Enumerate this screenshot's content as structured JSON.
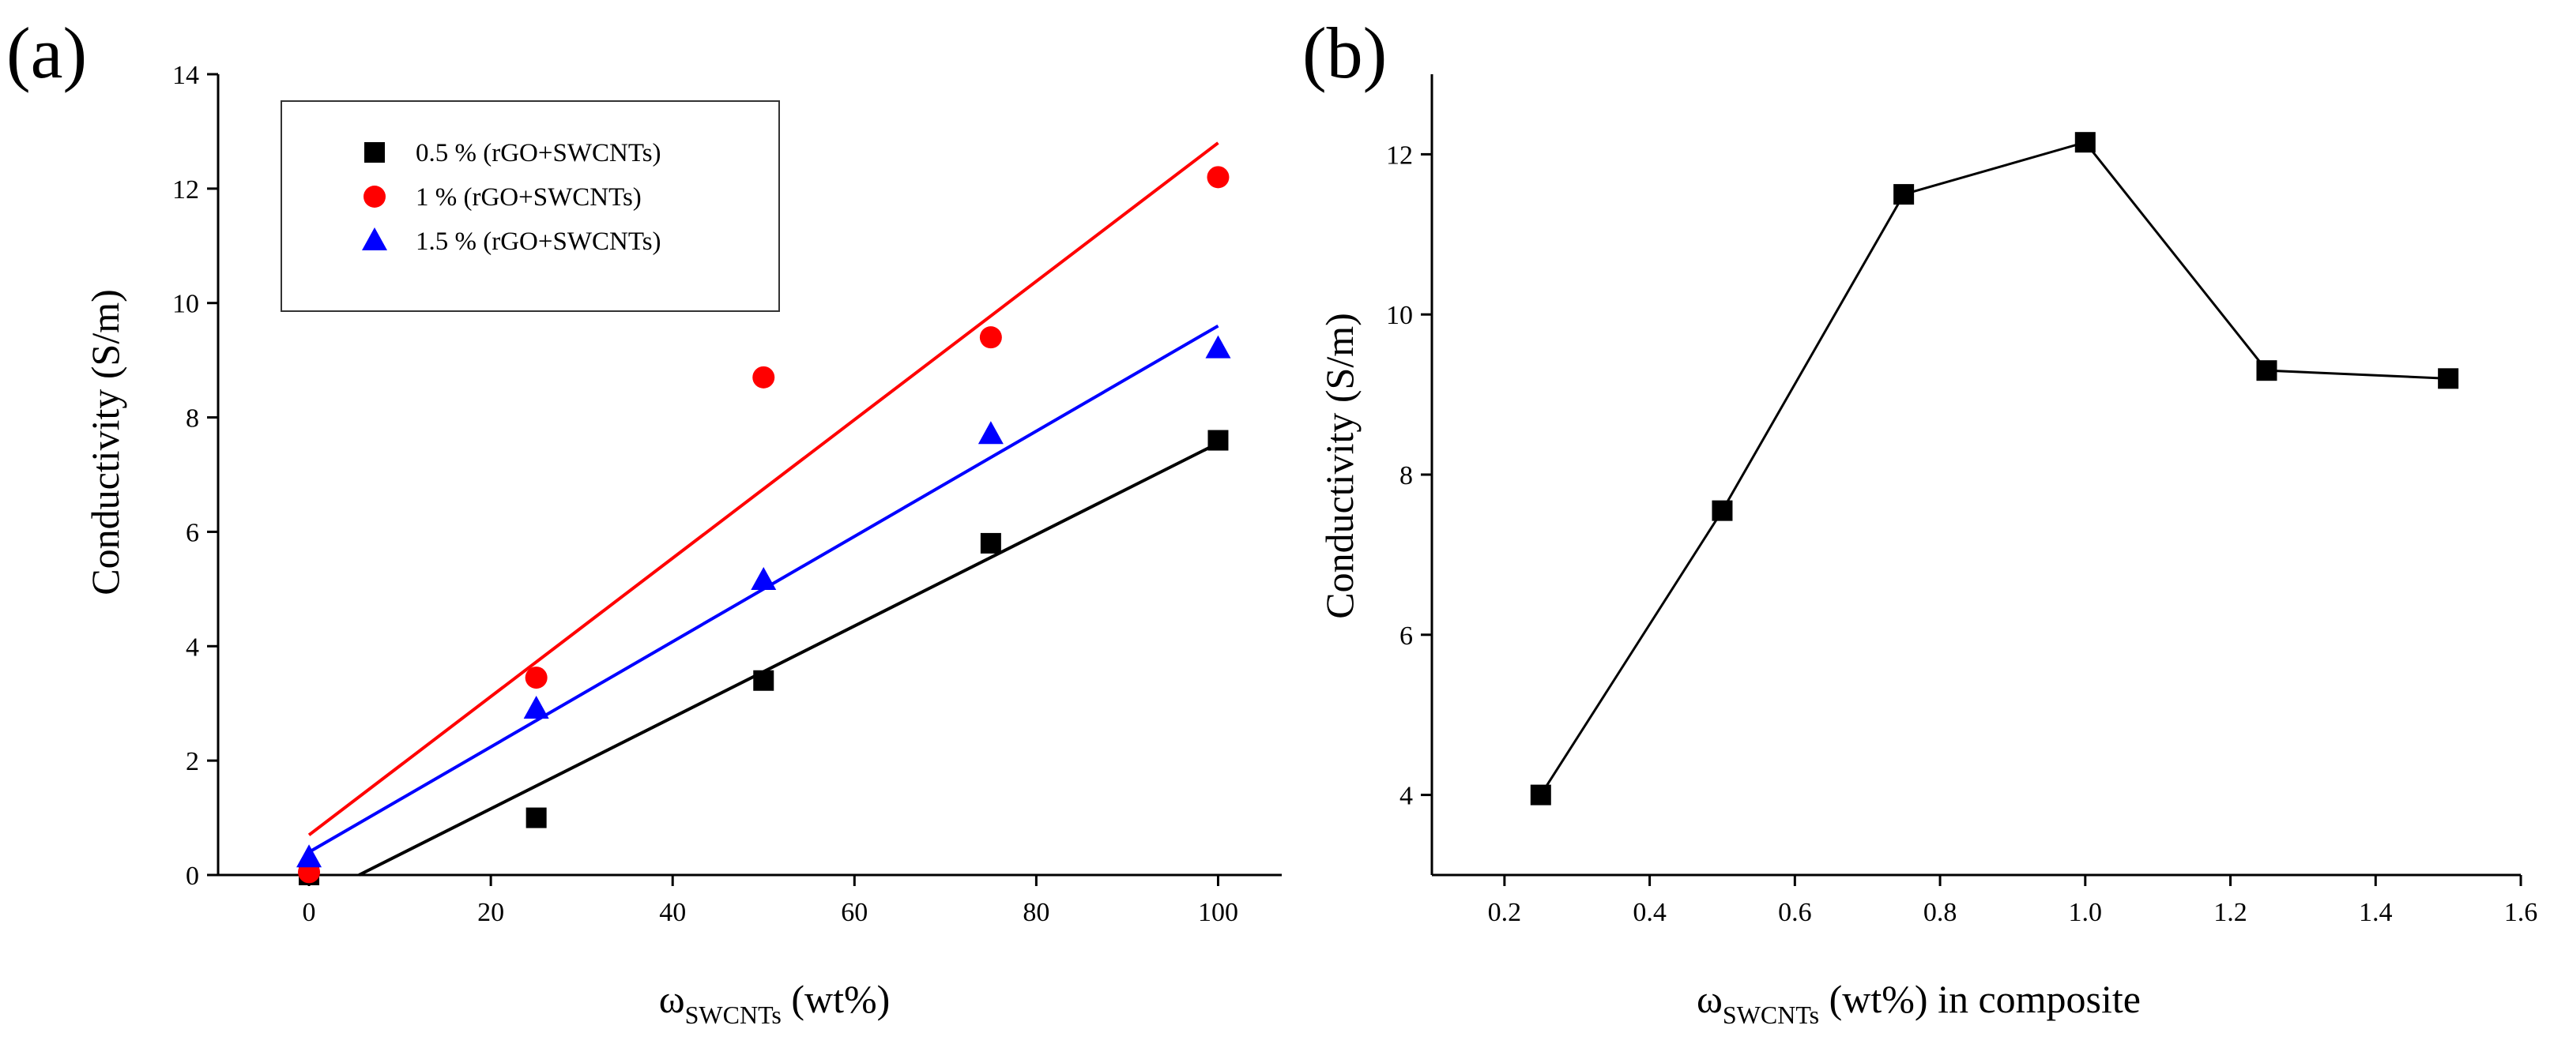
{
  "chart_data": [
    {
      "type": "scatter",
      "panel_label": "(a)",
      "xlabel": {
        "main": "ω",
        "sub": "SWCNTs",
        "rest": " (wt%)"
      },
      "ylabel": "Conductivity  (S/m)",
      "xlim": [
        -10,
        107
      ],
      "ylim": [
        0,
        14
      ],
      "xticks": [
        0,
        20,
        40,
        60,
        80,
        100
      ],
      "yticks": [
        0,
        2,
        4,
        6,
        8,
        10,
        12,
        14
      ],
      "grid": false,
      "legend_position": "top-left",
      "series": [
        {
          "name": "0.5 % (rGO+SWCNTs)",
          "marker": "square",
          "color": "#000000",
          "x": [
            0,
            25,
            50,
            75,
            100
          ],
          "y": [
            0.0,
            1.0,
            3.4,
            5.8,
            7.6
          ],
          "fit": {
            "x": [
              5.5,
              100
            ],
            "y": [
              0.0,
              7.55
            ]
          }
        },
        {
          "name": "1 % (rGO+SWCNTs)",
          "marker": "circle",
          "color": "#ff0000",
          "x": [
            0,
            25,
            50,
            75,
            100
          ],
          "y": [
            0.05,
            3.45,
            8.7,
            9.4,
            12.2
          ],
          "fit": {
            "x": [
              0,
              100
            ],
            "y": [
              0.7,
              12.8
            ]
          }
        },
        {
          "name": "1.5 % (rGO+SWCNTs)",
          "marker": "triangle",
          "color": "#0000ff",
          "x": [
            0,
            25,
            50,
            75,
            100
          ],
          "y": [
            0.3,
            2.9,
            5.15,
            7.7,
            9.2
          ],
          "fit": {
            "x": [
              0,
              100
            ],
            "y": [
              0.4,
              9.6
            ]
          }
        }
      ]
    },
    {
      "type": "line",
      "panel_label": "(b)",
      "xlabel": {
        "main": "ω",
        "sub": "SWCNTs",
        "rest": " (wt%) in composite"
      },
      "ylabel": "Conductivity  (S/m)",
      "xlim": [
        0.1,
        1.6
      ],
      "ylim": [
        3,
        13
      ],
      "xticks": [
        0.2,
        0.4,
        0.6,
        0.8,
        1.0,
        1.2,
        1.4,
        1.6
      ],
      "yticks": [
        4,
        6,
        8,
        10,
        12
      ],
      "grid": false,
      "series": [
        {
          "marker": "square",
          "color": "#000000",
          "x": [
            0.25,
            0.5,
            0.75,
            1.0,
            1.25,
            1.5
          ],
          "y": [
            4.0,
            7.55,
            11.5,
            12.15,
            9.3,
            9.2
          ]
        }
      ]
    }
  ]
}
